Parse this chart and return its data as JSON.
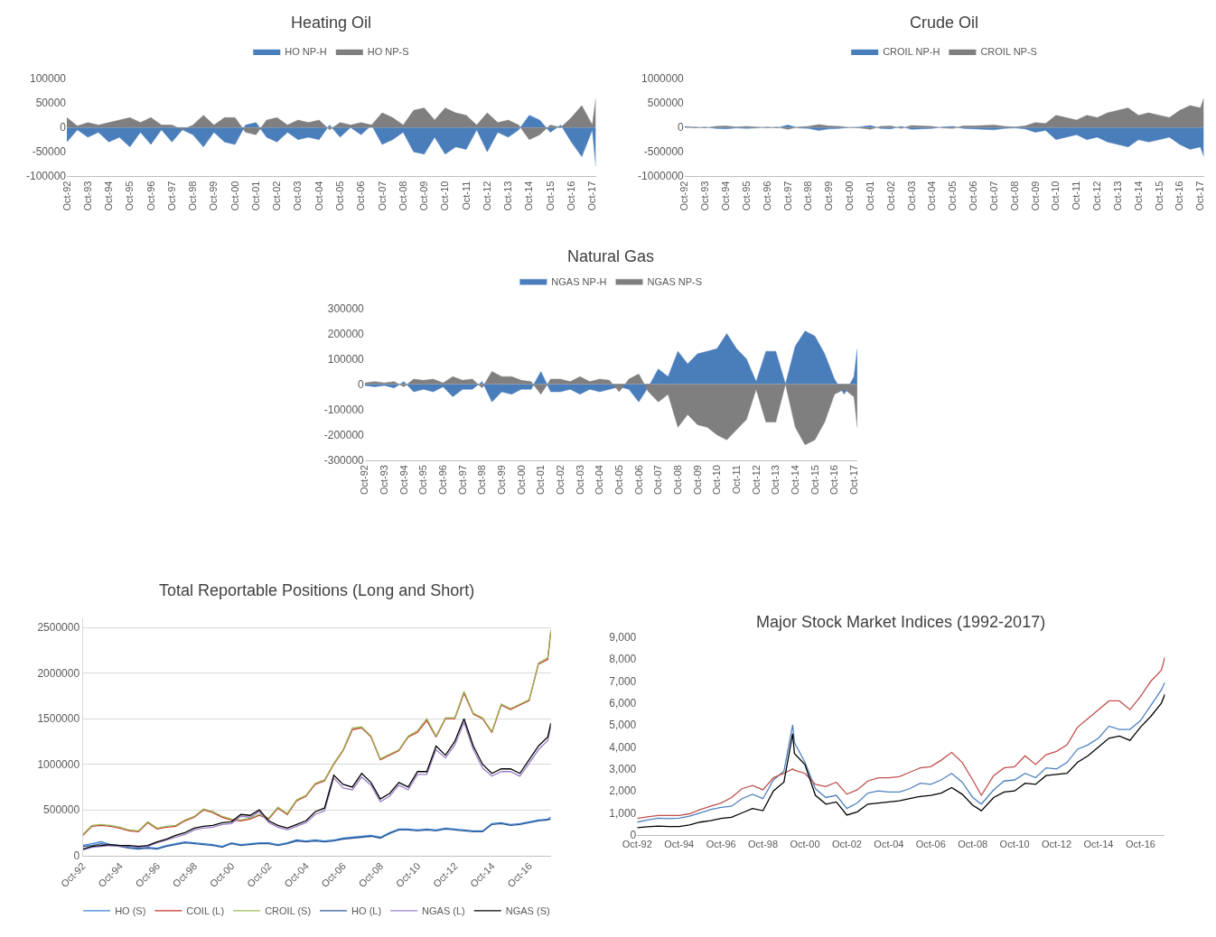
{
  "chart_data": [
    {
      "type": "area",
      "title": "Heating Oil",
      "legend": "top",
      "grid": false,
      "x": [
        "1992-10",
        "1993-04",
        "1993-10",
        "1994-04",
        "1994-10",
        "1995-04",
        "1995-10",
        "1996-04",
        "1996-10",
        "1997-04",
        "1997-10",
        "1998-04",
        "1998-10",
        "1999-04",
        "1999-10",
        "2000-04",
        "2000-10",
        "2001-04",
        "2001-10",
        "2002-04",
        "2002-10",
        "2003-04",
        "2003-10",
        "2004-04",
        "2004-10",
        "2005-04",
        "2005-10",
        "2006-04",
        "2006-10",
        "2007-04",
        "2007-10",
        "2008-04",
        "2008-10",
        "2009-04",
        "2009-10",
        "2010-04",
        "2010-10",
        "2011-04",
        "2011-10",
        "2012-04",
        "2012-10",
        "2013-04",
        "2013-10",
        "2014-04",
        "2014-10",
        "2015-04",
        "2015-10",
        "2016-04",
        "2016-10",
        "2017-04",
        "2017-10",
        "2017-12"
      ],
      "xlim": [
        "1992-10",
        "2017-12"
      ],
      "xticks": [
        {
          "value": "1992-10",
          "label": "Oct-92"
        },
        {
          "value": "1993-10",
          "label": "Oct-93"
        },
        {
          "value": "1994-10",
          "label": "Oct-94"
        },
        {
          "value": "1995-10",
          "label": "Oct-95"
        },
        {
          "value": "1996-10",
          "label": "Oct-96"
        },
        {
          "value": "1997-10",
          "label": "Oct-97"
        },
        {
          "value": "1998-10",
          "label": "Oct-98"
        },
        {
          "value": "1999-10",
          "label": "Oct-99"
        },
        {
          "value": "2000-10",
          "label": "Oct-00"
        },
        {
          "value": "2001-10",
          "label": "Oct-01"
        },
        {
          "value": "2002-10",
          "label": "Oct-02"
        },
        {
          "value": "2003-10",
          "label": "Oct-03"
        },
        {
          "value": "2004-10",
          "label": "Oct-04"
        },
        {
          "value": "2005-10",
          "label": "Oct-05"
        },
        {
          "value": "2006-10",
          "label": "Oct-06"
        },
        {
          "value": "2007-10",
          "label": "Oct-07"
        },
        {
          "value": "2008-10",
          "label": "Oct-08"
        },
        {
          "value": "2009-10",
          "label": "Oct-09"
        },
        {
          "value": "2010-10",
          "label": "Oct-10"
        },
        {
          "value": "2011-10",
          "label": "Oct-11"
        },
        {
          "value": "2012-10",
          "label": "Oct-12"
        },
        {
          "value": "2013-10",
          "label": "Oct-13"
        },
        {
          "value": "2014-10",
          "label": "Oct-14"
        },
        {
          "value": "2015-10",
          "label": "Oct-15"
        },
        {
          "value": "2016-10",
          "label": "Oct-16"
        },
        {
          "value": "2017-10",
          "label": "Oct-17"
        }
      ],
      "ylim": [
        -100000,
        100000
      ],
      "yticks": [
        -100000,
        -50000,
        0,
        50000,
        100000
      ],
      "series": [
        {
          "name": "HO NP-H",
          "color": "#4a7ebb",
          "values": [
            -30000,
            -5000,
            -20000,
            -10000,
            -30000,
            -20000,
            -40000,
            -10000,
            -35000,
            -5000,
            -30000,
            -5000,
            -15000,
            -40000,
            -10000,
            -30000,
            -35000,
            5000,
            10000,
            -20000,
            -30000,
            -10000,
            -25000,
            -20000,
            -25000,
            5000,
            -20000,
            0,
            -15000,
            5000,
            -35000,
            -25000,
            -10000,
            -50000,
            -55000,
            -20000,
            -55000,
            -40000,
            -45000,
            -5000,
            -50000,
            -10000,
            -20000,
            -5000,
            25000,
            15000,
            -10000,
            5000,
            -30000,
            -60000,
            -5000,
            -80000
          ]
        },
        {
          "name": "HO NP-S",
          "color": "#7f7f7f",
          "values": [
            20000,
            3000,
            10000,
            5000,
            10000,
            15000,
            20000,
            10000,
            20000,
            5000,
            5000,
            -5000,
            5000,
            25000,
            5000,
            20000,
            20000,
            -10000,
            -15000,
            15000,
            20000,
            5000,
            15000,
            10000,
            15000,
            -5000,
            10000,
            5000,
            10000,
            5000,
            30000,
            20000,
            5000,
            35000,
            40000,
            15000,
            40000,
            30000,
            25000,
            5000,
            30000,
            10000,
            15000,
            5000,
            -25000,
            -15000,
            5000,
            0,
            20000,
            45000,
            5000,
            60000
          ]
        }
      ]
    },
    {
      "type": "area",
      "title": "Crude Oil",
      "legend": "top",
      "grid": false,
      "x": [
        "1992-10",
        "1993-04",
        "1993-10",
        "1994-04",
        "1994-10",
        "1995-04",
        "1995-10",
        "1996-04",
        "1996-10",
        "1997-04",
        "1997-10",
        "1998-04",
        "1998-10",
        "1999-04",
        "1999-10",
        "2000-04",
        "2000-10",
        "2001-04",
        "2001-10",
        "2002-04",
        "2002-10",
        "2003-04",
        "2003-10",
        "2004-04",
        "2004-10",
        "2005-04",
        "2005-10",
        "2006-04",
        "2006-10",
        "2007-04",
        "2007-10",
        "2008-04",
        "2008-10",
        "2009-04",
        "2009-10",
        "2010-04",
        "2010-10",
        "2011-04",
        "2011-10",
        "2012-04",
        "2012-10",
        "2013-04",
        "2013-10",
        "2014-04",
        "2014-10",
        "2015-04",
        "2015-10",
        "2016-04",
        "2016-10",
        "2017-04",
        "2017-10",
        "2017-12"
      ],
      "xlim": [
        "1992-10",
        "2017-12"
      ],
      "xticks": [
        {
          "value": "1992-10",
          "label": "Oct-92"
        },
        {
          "value": "1993-10",
          "label": "Oct-93"
        },
        {
          "value": "1994-10",
          "label": "Oct-94"
        },
        {
          "value": "1995-10",
          "label": "Oct-95"
        },
        {
          "value": "1996-10",
          "label": "Oct-96"
        },
        {
          "value": "1997-10",
          "label": "Oct-97"
        },
        {
          "value": "1998-10",
          "label": "Oct-98"
        },
        {
          "value": "1999-10",
          "label": "Oct-99"
        },
        {
          "value": "2000-10",
          "label": "Oct-00"
        },
        {
          "value": "2001-10",
          "label": "Oct-01"
        },
        {
          "value": "2002-10",
          "label": "Oct-02"
        },
        {
          "value": "2003-10",
          "label": "Oct-03"
        },
        {
          "value": "2004-10",
          "label": "Oct-04"
        },
        {
          "value": "2005-10",
          "label": "Oct-05"
        },
        {
          "value": "2006-10",
          "label": "Oct-06"
        },
        {
          "value": "2007-10",
          "label": "Oct-07"
        },
        {
          "value": "2008-10",
          "label": "Oct-08"
        },
        {
          "value": "2009-10",
          "label": "Oct-09"
        },
        {
          "value": "2010-10",
          "label": "Oct-10"
        },
        {
          "value": "2011-10",
          "label": "Oct-11"
        },
        {
          "value": "2012-10",
          "label": "Oct-12"
        },
        {
          "value": "2013-10",
          "label": "Oct-13"
        },
        {
          "value": "2014-10",
          "label": "Oct-14"
        },
        {
          "value": "2015-10",
          "label": "Oct-15"
        },
        {
          "value": "2016-10",
          "label": "Oct-16"
        },
        {
          "value": "2017-10",
          "label": "Oct-17"
        }
      ],
      "ylim": [
        -1000000,
        1000000
      ],
      "yticks": [
        -1000000,
        -500000,
        0,
        500000,
        1000000
      ],
      "series": [
        {
          "name": "CROIL NP-H",
          "color": "#4a7ebb",
          "values": [
            20000,
            -10000,
            10000,
            -20000,
            -30000,
            -10000,
            -20000,
            -10000,
            10000,
            -10000,
            50000,
            -10000,
            -20000,
            -60000,
            -30000,
            -20000,
            0,
            10000,
            40000,
            -20000,
            -30000,
            20000,
            -40000,
            -30000,
            -20000,
            10000,
            20000,
            -20000,
            -30000,
            -40000,
            -50000,
            -20000,
            -10000,
            -30000,
            -100000,
            -60000,
            -250000,
            -200000,
            -150000,
            -250000,
            -200000,
            -300000,
            -350000,
            -400000,
            -250000,
            -300000,
            -250000,
            -200000,
            -350000,
            -450000,
            -400000,
            -600000
          ]
        },
        {
          "name": "CROIL NP-S",
          "color": "#7f7f7f",
          "values": [
            10000,
            10000,
            -10000,
            20000,
            30000,
            10000,
            20000,
            10000,
            -10000,
            10000,
            -40000,
            10000,
            20000,
            60000,
            30000,
            20000,
            0,
            -10000,
            -40000,
            20000,
            30000,
            -20000,
            40000,
            30000,
            20000,
            -10000,
            -20000,
            30000,
            30000,
            40000,
            50000,
            20000,
            10000,
            30000,
            100000,
            80000,
            250000,
            200000,
            150000,
            250000,
            200000,
            300000,
            350000,
            400000,
            250000,
            300000,
            250000,
            200000,
            350000,
            450000,
            400000,
            600000
          ]
        }
      ]
    },
    {
      "type": "area",
      "title": "Natural Gas",
      "legend": "top",
      "grid": false,
      "x": [
        "1992-10",
        "1993-04",
        "1993-10",
        "1994-04",
        "1994-10",
        "1995-04",
        "1995-10",
        "1996-04",
        "1996-10",
        "1997-04",
        "1997-10",
        "1998-04",
        "1998-10",
        "1999-04",
        "1999-10",
        "2000-04",
        "2000-10",
        "2001-04",
        "2001-10",
        "2002-04",
        "2002-10",
        "2003-04",
        "2003-10",
        "2004-04",
        "2004-10",
        "2005-04",
        "2005-10",
        "2006-04",
        "2006-10",
        "2007-04",
        "2007-10",
        "2008-04",
        "2008-10",
        "2009-04",
        "2009-10",
        "2010-04",
        "2010-10",
        "2011-04",
        "2011-10",
        "2012-04",
        "2012-10",
        "2013-04",
        "2013-10",
        "2014-04",
        "2014-10",
        "2015-04",
        "2015-10",
        "2016-04",
        "2016-10",
        "2017-04",
        "2017-10",
        "2017-12"
      ],
      "xlim": [
        "1992-10",
        "2017-12"
      ],
      "xticks": [
        {
          "value": "1992-10",
          "label": "Oct-92"
        },
        {
          "value": "1993-10",
          "label": "Oct-93"
        },
        {
          "value": "1994-10",
          "label": "Oct-94"
        },
        {
          "value": "1995-10",
          "label": "Oct-95"
        },
        {
          "value": "1996-10",
          "label": "Oct-96"
        },
        {
          "value": "1997-10",
          "label": "Oct-97"
        },
        {
          "value": "1998-10",
          "label": "Oct-98"
        },
        {
          "value": "1999-10",
          "label": "Oct-99"
        },
        {
          "value": "2000-10",
          "label": "Oct-00"
        },
        {
          "value": "2001-10",
          "label": "Oct-01"
        },
        {
          "value": "2002-10",
          "label": "Oct-02"
        },
        {
          "value": "2003-10",
          "label": "Oct-03"
        },
        {
          "value": "2004-10",
          "label": "Oct-04"
        },
        {
          "value": "2005-10",
          "label": "Oct-05"
        },
        {
          "value": "2006-10",
          "label": "Oct-06"
        },
        {
          "value": "2007-10",
          "label": "Oct-07"
        },
        {
          "value": "2008-10",
          "label": "Oct-08"
        },
        {
          "value": "2009-10",
          "label": "Oct-09"
        },
        {
          "value": "2010-10",
          "label": "Oct-10"
        },
        {
          "value": "2011-10",
          "label": "Oct-11"
        },
        {
          "value": "2012-10",
          "label": "Oct-12"
        },
        {
          "value": "2013-10",
          "label": "Oct-13"
        },
        {
          "value": "2014-10",
          "label": "Oct-14"
        },
        {
          "value": "2015-10",
          "label": "Oct-15"
        },
        {
          "value": "2016-10",
          "label": "Oct-16"
        },
        {
          "value": "2017-10",
          "label": "Oct-17"
        }
      ],
      "ylim": [
        -300000,
        300000
      ],
      "yticks": [
        -300000,
        -200000,
        -100000,
        0,
        100000,
        200000,
        300000
      ],
      "series": [
        {
          "name": "NGAS NP-H",
          "color": "#4a7ebb",
          "values": [
            -5000,
            -10000,
            -5000,
            -15000,
            10000,
            -30000,
            -20000,
            -30000,
            -10000,
            -50000,
            -20000,
            -20000,
            10000,
            -70000,
            -30000,
            -40000,
            -20000,
            -20000,
            50000,
            -30000,
            -30000,
            -20000,
            -40000,
            -20000,
            -30000,
            -20000,
            -10000,
            -20000,
            -70000,
            -10000,
            60000,
            30000,
            130000,
            80000,
            120000,
            130000,
            140000,
            200000,
            140000,
            100000,
            10000,
            130000,
            130000,
            0,
            150000,
            210000,
            190000,
            120000,
            20000,
            -40000,
            30000,
            140000
          ]
        },
        {
          "name": "NGAS NP-S",
          "color": "#7f7f7f",
          "values": [
            5000,
            10000,
            5000,
            10000,
            -10000,
            20000,
            15000,
            20000,
            5000,
            30000,
            15000,
            20000,
            -15000,
            50000,
            30000,
            30000,
            15000,
            10000,
            -40000,
            20000,
            20000,
            10000,
            30000,
            10000,
            20000,
            15000,
            -30000,
            20000,
            40000,
            -30000,
            -70000,
            -40000,
            -170000,
            -120000,
            -160000,
            -170000,
            -200000,
            -220000,
            -180000,
            -140000,
            -20000,
            -150000,
            -150000,
            0,
            -170000,
            -240000,
            -220000,
            -150000,
            -40000,
            -20000,
            -50000,
            -170000
          ]
        }
      ]
    },
    {
      "type": "line",
      "title": "Total Reportable Positions (Long and Short)",
      "legend": "bottom",
      "grid": "y",
      "marker": "none",
      "x": [
        "1992-10",
        "1993-04",
        "1993-10",
        "1994-04",
        "1994-10",
        "1995-04",
        "1995-10",
        "1996-04",
        "1996-10",
        "1997-04",
        "1997-10",
        "1998-04",
        "1998-10",
        "1999-04",
        "1999-10",
        "2000-04",
        "2000-10",
        "2001-04",
        "2001-10",
        "2002-04",
        "2002-10",
        "2003-04",
        "2003-10",
        "2004-04",
        "2004-10",
        "2005-04",
        "2005-10",
        "2006-04",
        "2006-10",
        "2007-04",
        "2007-10",
        "2008-04",
        "2008-10",
        "2009-04",
        "2009-10",
        "2010-04",
        "2010-10",
        "2011-04",
        "2011-10",
        "2012-04",
        "2012-10",
        "2013-04",
        "2013-10",
        "2014-04",
        "2014-10",
        "2015-04",
        "2015-10",
        "2016-04",
        "2016-10",
        "2017-04",
        "2017-10",
        "2017-12"
      ],
      "xlim": [
        "1992-10",
        "2017-12"
      ],
      "xticks": [
        {
          "value": "1992-10",
          "label": "Oct-92"
        },
        {
          "value": "1994-10",
          "label": "Oct-94"
        },
        {
          "value": "1996-10",
          "label": "Oct-96"
        },
        {
          "value": "1998-10",
          "label": "Oct-98"
        },
        {
          "value": "2000-10",
          "label": "Oct-00"
        },
        {
          "value": "2002-10",
          "label": "Oct-02"
        },
        {
          "value": "2004-10",
          "label": "Oct-04"
        },
        {
          "value": "2006-10",
          "label": "Oct-06"
        },
        {
          "value": "2008-10",
          "label": "Oct-08"
        },
        {
          "value": "2010-10",
          "label": "Oct-10"
        },
        {
          "value": "2012-10",
          "label": "Oct-12"
        },
        {
          "value": "2014-10",
          "label": "Oct-14"
        },
        {
          "value": "2016-10",
          "label": "Oct-16"
        }
      ],
      "ylim": [
        0,
        2600000
      ],
      "yticks": [
        0,
        500000,
        1000000,
        1500000,
        2000000,
        2500000
      ],
      "series": [
        {
          "name": "HO (S)",
          "color": "#3b82d6",
          "values": [
            110000,
            130000,
            150000,
            120000,
            110000,
            90000,
            80000,
            90000,
            80000,
            110000,
            130000,
            150000,
            140000,
            130000,
            120000,
            100000,
            140000,
            120000,
            130000,
            140000,
            140000,
            120000,
            140000,
            170000,
            160000,
            170000,
            160000,
            170000,
            190000,
            200000,
            210000,
            220000,
            200000,
            250000,
            290000,
            290000,
            280000,
            290000,
            280000,
            300000,
            290000,
            280000,
            270000,
            270000,
            350000,
            360000,
            340000,
            350000,
            370000,
            390000,
            400000,
            420000
          ]
        },
        {
          "name": "COIL (L)",
          "color": "#c9302c",
          "values": [
            220000,
            320000,
            330000,
            320000,
            300000,
            270000,
            260000,
            360000,
            290000,
            310000,
            320000,
            380000,
            420000,
            500000,
            470000,
            420000,
            390000,
            380000,
            400000,
            440000,
            400000,
            520000,
            450000,
            600000,
            650000,
            780000,
            820000,
            1000000,
            1150000,
            1380000,
            1400000,
            1300000,
            1050000,
            1100000,
            1150000,
            1300000,
            1350000,
            1480000,
            1300000,
            1500000,
            1500000,
            1780000,
            1550000,
            1500000,
            1350000,
            1650000,
            1600000,
            1650000,
            1700000,
            2100000,
            2150000,
            2450000
          ]
        },
        {
          "name": "CROIL (S)",
          "color": "#9bbb59",
          "values": [
            230000,
            330000,
            340000,
            330000,
            310000,
            280000,
            270000,
            370000,
            300000,
            320000,
            330000,
            390000,
            430000,
            510000,
            480000,
            430000,
            400000,
            390000,
            410000,
            450000,
            410000,
            530000,
            460000,
            610000,
            660000,
            790000,
            830000,
            1010000,
            1160000,
            1400000,
            1410000,
            1310000,
            1060000,
            1110000,
            1160000,
            1310000,
            1370000,
            1500000,
            1310000,
            1510000,
            1510000,
            1800000,
            1560000,
            1510000,
            1360000,
            1660000,
            1610000,
            1660000,
            1710000,
            2110000,
            2170000,
            2480000
          ]
        },
        {
          "name": "HO (L)",
          "color": "#2e5a95",
          "values": [
            100000,
            110000,
            130000,
            110000,
            100000,
            80000,
            70000,
            80000,
            70000,
            100000,
            120000,
            140000,
            130000,
            120000,
            110000,
            90000,
            130000,
            110000,
            120000,
            130000,
            130000,
            110000,
            130000,
            160000,
            150000,
            160000,
            150000,
            160000,
            180000,
            190000,
            200000,
            210000,
            190000,
            240000,
            280000,
            280000,
            270000,
            280000,
            270000,
            290000,
            280000,
            270000,
            260000,
            260000,
            340000,
            350000,
            330000,
            340000,
            360000,
            380000,
            390000,
            400000
          ]
        },
        {
          "name": "NGAS (L)",
          "color": "#9b7fc7",
          "values": [
            60000,
            90000,
            100000,
            110000,
            100000,
            100000,
            90000,
            100000,
            140000,
            170000,
            200000,
            230000,
            280000,
            300000,
            310000,
            340000,
            350000,
            430000,
            420000,
            480000,
            360000,
            310000,
            280000,
            320000,
            360000,
            450000,
            490000,
            850000,
            740000,
            720000,
            860000,
            770000,
            590000,
            650000,
            770000,
            720000,
            890000,
            890000,
            1160000,
            1070000,
            1210000,
            1460000,
            1160000,
            960000,
            870000,
            920000,
            920000,
            870000,
            1010000,
            1160000,
            1260000,
            1420000
          ]
        },
        {
          "name": "NGAS (S)",
          "color": "#000000",
          "values": [
            70000,
            100000,
            110000,
            120000,
            110000,
            110000,
            100000,
            110000,
            150000,
            180000,
            220000,
            250000,
            300000,
            320000,
            330000,
            360000,
            370000,
            450000,
            440000,
            500000,
            380000,
            330000,
            300000,
            340000,
            380000,
            480000,
            520000,
            880000,
            780000,
            750000,
            900000,
            800000,
            620000,
            680000,
            800000,
            750000,
            920000,
            920000,
            1200000,
            1100000,
            1250000,
            1500000,
            1200000,
            1000000,
            900000,
            950000,
            950000,
            900000,
            1050000,
            1200000,
            1300000,
            1450000
          ]
        }
      ]
    },
    {
      "type": "line",
      "title": "Major Stock Market Indices (1992-2017)",
      "grid": false,
      "marker": "none",
      "x": [
        "1992-10",
        "1993-04",
        "1993-10",
        "1994-04",
        "1994-10",
        "1995-04",
        "1995-10",
        "1996-04",
        "1996-10",
        "1997-04",
        "1997-10",
        "1998-04",
        "1998-10",
        "1999-04",
        "1999-10",
        "2000-03",
        "2000-04",
        "2000-10",
        "2001-04",
        "2001-10",
        "2002-04",
        "2002-10",
        "2003-04",
        "2003-10",
        "2004-04",
        "2004-10",
        "2005-04",
        "2005-10",
        "2006-04",
        "2006-10",
        "2007-04",
        "2007-10",
        "2008-04",
        "2008-10",
        "2009-03",
        "2009-10",
        "2010-04",
        "2010-10",
        "2011-04",
        "2011-10",
        "2012-04",
        "2012-10",
        "2013-04",
        "2013-10",
        "2014-04",
        "2014-10",
        "2015-04",
        "2015-10",
        "2016-04",
        "2016-10",
        "2017-04",
        "2017-10",
        "2017-12"
      ],
      "xlim": [
        "1992-10",
        "2017-12"
      ],
      "xticks": [
        {
          "value": "1992-10",
          "label": "Oct-92"
        },
        {
          "value": "1994-10",
          "label": "Oct-94"
        },
        {
          "value": "1996-10",
          "label": "Oct-96"
        },
        {
          "value": "1998-10",
          "label": "Oct-98"
        },
        {
          "value": "2000-10",
          "label": "Oct-00"
        },
        {
          "value": "2002-10",
          "label": "Oct-02"
        },
        {
          "value": "2004-10",
          "label": "Oct-04"
        },
        {
          "value": "2006-10",
          "label": "Oct-06"
        },
        {
          "value": "2008-10",
          "label": "Oct-08"
        },
        {
          "value": "2010-10",
          "label": "Oct-10"
        },
        {
          "value": "2012-10",
          "label": "Oct-12"
        },
        {
          "value": "2014-10",
          "label": "Oct-14"
        },
        {
          "value": "2016-10",
          "label": "Oct-16"
        }
      ],
      "ylim": [
        0,
        9000
      ],
      "yticks": [
        0,
        {
          "value": 1000,
          "label": "1,000"
        },
        {
          "value": 2000,
          "label": "2,000"
        },
        {
          "value": 3000,
          "label": "3,000"
        },
        {
          "value": 4000,
          "label": "4,000"
        },
        {
          "value": 5000,
          "label": "5,000"
        },
        {
          "value": 6000,
          "label": "6,000"
        },
        {
          "value": 7000,
          "label": "7,000"
        },
        {
          "value": 8000,
          "label": "8,000"
        },
        {
          "value": 9000,
          "label": "9,000"
        }
      ],
      "series": [
        {
          "color": "#4f81bd",
          "values": [
            580,
            680,
            760,
            740,
            760,
            850,
            1000,
            1150,
            1250,
            1300,
            1650,
            1850,
            1650,
            2500,
            2900,
            5000,
            4200,
            3300,
            2100,
            1700,
            1800,
            1200,
            1450,
            1900,
            2000,
            1950,
            1950,
            2100,
            2350,
            2300,
            2500,
            2800,
            2400,
            1700,
            1400,
            2050,
            2450,
            2500,
            2800,
            2600,
            3050,
            3000,
            3300,
            3900,
            4100,
            4400,
            4950,
            4800,
            4800,
            5200,
            5900,
            6600,
            6950
          ]
        },
        {
          "color": "#c0504d",
          "values": [
            750,
            820,
            880,
            880,
            880,
            960,
            1150,
            1300,
            1450,
            1700,
            2100,
            2250,
            2050,
            2600,
            2800,
            3000,
            2950,
            2800,
            2300,
            2200,
            2400,
            1850,
            2050,
            2450,
            2600,
            2600,
            2650,
            2850,
            3050,
            3100,
            3400,
            3750,
            3300,
            2500,
            1800,
            2700,
            3050,
            3100,
            3600,
            3200,
            3650,
            3800,
            4100,
            4900,
            5300,
            5700,
            6100,
            6100,
            5700,
            6300,
            7000,
            7500,
            8100
          ]
        },
        {
          "color": "#000000",
          "values": [
            330,
            370,
            400,
            380,
            380,
            450,
            580,
            650,
            750,
            800,
            1000,
            1200,
            1100,
            2000,
            2400,
            4600,
            3700,
            3200,
            1800,
            1400,
            1500,
            900,
            1050,
            1400,
            1450,
            1500,
            1550,
            1650,
            1750,
            1800,
            1900,
            2150,
            1850,
            1350,
            1100,
            1700,
            1950,
            2000,
            2350,
            2300,
            2700,
            2750,
            2800,
            3300,
            3600,
            4000,
            4400,
            4500,
            4300,
            4900,
            5400,
            6000,
            6400
          ]
        }
      ]
    }
  ]
}
